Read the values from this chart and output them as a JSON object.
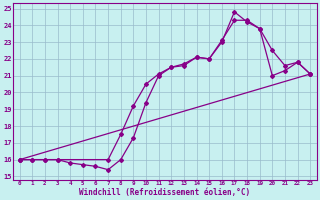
{
  "xlabel": "Windchill (Refroidissement éolien,°C)",
  "bg_color": "#c8f0f0",
  "line_color": "#880088",
  "grid_color": "#99bbcc",
  "xlim": [
    -0.5,
    23.5
  ],
  "ylim": [
    14.8,
    25.3
  ],
  "xticks": [
    0,
    1,
    2,
    3,
    4,
    5,
    6,
    7,
    8,
    9,
    10,
    11,
    12,
    13,
    14,
    15,
    16,
    17,
    18,
    19,
    20,
    21,
    22,
    23
  ],
  "yticks": [
    15,
    16,
    17,
    18,
    19,
    20,
    21,
    22,
    23,
    24,
    25
  ],
  "line1_x": [
    0,
    1,
    2,
    3,
    4,
    5,
    6,
    7,
    8,
    9,
    10,
    11,
    12,
    13,
    14,
    15,
    16,
    17,
    18,
    19,
    20,
    21,
    22,
    23
  ],
  "line1_y": [
    16.0,
    16.0,
    16.0,
    16.0,
    15.8,
    15.7,
    15.6,
    15.4,
    16.0,
    17.3,
    19.4,
    21.0,
    21.5,
    21.6,
    22.1,
    22.0,
    23.0,
    24.8,
    24.2,
    23.8,
    22.5,
    21.6,
    21.8,
    21.1
  ],
  "line2_x": [
    0,
    1,
    2,
    3,
    7,
    8,
    9,
    10,
    11,
    12,
    13,
    14,
    15,
    16,
    17,
    18,
    19,
    20,
    21,
    22,
    23
  ],
  "line2_y": [
    16.0,
    16.0,
    16.0,
    16.0,
    16.0,
    17.5,
    19.2,
    20.5,
    21.1,
    21.5,
    21.7,
    22.1,
    22.0,
    23.1,
    24.3,
    24.3,
    23.8,
    21.0,
    21.3,
    21.8,
    21.1
  ],
  "line3_x": [
    0,
    23
  ],
  "line3_y": [
    16.0,
    21.1
  ]
}
